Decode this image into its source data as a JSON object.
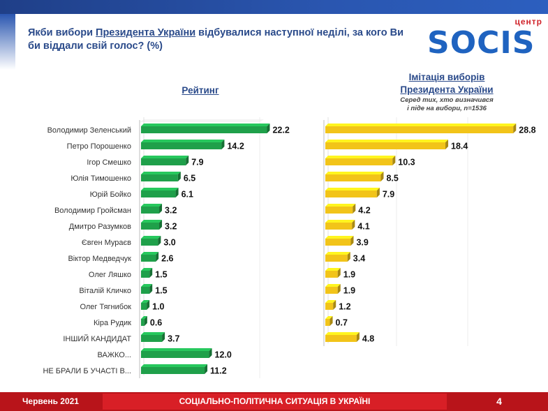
{
  "title": {
    "part1": "Якби вибори ",
    "link": "Президента України",
    "part2": " відбувалися наступної неділі, за кого Ви би віддали свій голос? (%)"
  },
  "logo": {
    "small": "центр",
    "main": "SOCIS"
  },
  "left_header": "Рейтинг",
  "right_header_line1": "Імітація виборів",
  "right_header_line2": "Президента України",
  "right_note_line1": "Серед тих, хто визначився",
  "right_note_line2": "і піде на вибори, n=1536",
  "colors": {
    "green": "#1fa04a",
    "yellow": "#f2c419",
    "title": "#2a4a8a",
    "footer": "#b8141a"
  },
  "chart_data": [
    {
      "type": "bar",
      "title": "Рейтинг",
      "categories": [
        "Володимир Зеленський",
        "Петро Порошенко",
        "Ігор Смешко",
        "Юлія Тимошенко",
        "Юрій Бойко",
        "Володимир Гройсман",
        "Дмитро Разумков",
        "Євген Мураєв",
        "Віктор Медведчук",
        "Олег Ляшко",
        "Віталій Кличко",
        "Олег Тягнибок",
        "Кіра Рудик",
        "ІНШИЙ КАНДИДАТ",
        "ВАЖКО...",
        "НЕ БРАЛИ Б УЧАСТІ В..."
      ],
      "values": [
        22.2,
        14.2,
        7.9,
        6.5,
        6.1,
        3.2,
        3.2,
        3.0,
        2.6,
        1.5,
        1.5,
        1.0,
        0.6,
        3.7,
        12.0,
        11.2
      ],
      "labels": [
        "22.2",
        "14.2",
        "7.9",
        "6.5",
        "6.1",
        "3.2",
        "3.2",
        "3.0",
        "2.6",
        "1.5",
        "1.5",
        "1.0",
        "0.6",
        "3.7",
        "12.0",
        "11.2"
      ]
    },
    {
      "type": "bar",
      "title": "Імітація виборів Президента України",
      "categories": [
        "Володимир Зеленський",
        "Петро Порошенко",
        "Ігор Смешко",
        "Юлія Тимошенко",
        "Юрій Бойко",
        "Володимир Гройсман",
        "Дмитро Разумков",
        "Євген Мураєв",
        "Віктор Медведчук",
        "Олег Ляшко",
        "Віталій Кличко",
        "Олег Тягнибок",
        "Кіра Рудик",
        "ІНШИЙ КАНДИДАТ"
      ],
      "values": [
        28.8,
        18.4,
        10.3,
        8.5,
        7.9,
        4.2,
        4.1,
        3.9,
        3.4,
        1.9,
        1.9,
        1.2,
        0.7,
        4.8
      ],
      "labels": [
        "28.8",
        "18.4",
        "10.3",
        "8.5",
        "7.9",
        "4.2",
        "4.1",
        "3.9",
        "3.4",
        "1.9",
        "1.9",
        "1.2",
        "0.7",
        "4.8"
      ]
    }
  ],
  "footer": {
    "date": "Червень 2021",
    "center": "СОЦІАЛЬНО-ПОЛІТИЧНА СИТУАЦІЯ В УКРАЇНІ",
    "page": "4"
  }
}
